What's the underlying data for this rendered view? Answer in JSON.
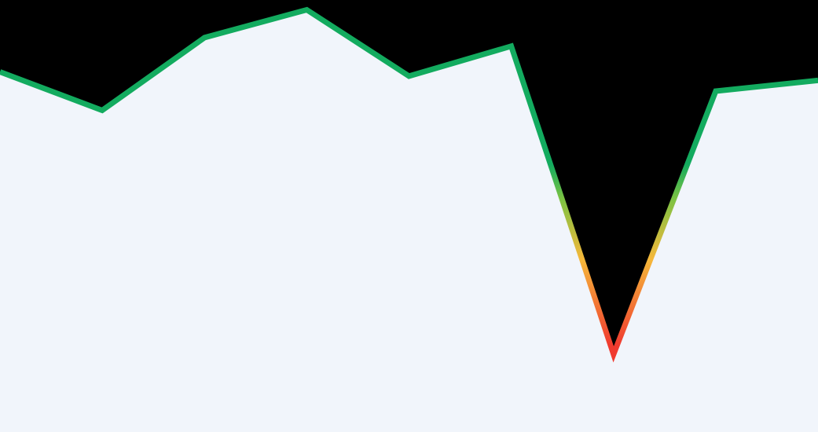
{
  "chart_data": {
    "type": "area",
    "title": "",
    "xlabel": "",
    "ylabel": "",
    "grid": false,
    "legend": "none",
    "ylim": [
      0,
      100
    ],
    "x": [
      0,
      1,
      2,
      3,
      4,
      5,
      6,
      7,
      8
    ],
    "series": [
      {
        "name": "",
        "values": [
          84.5,
          75.5,
          92.5,
          99,
          83.5,
          90.5,
          18.5,
          80,
          82.5
        ]
      }
    ]
  },
  "colors": {
    "background": "#000000",
    "area_fill": "#f1f5fb",
    "line_good": "#13ab5f",
    "line_mid_good": "#7cc243",
    "line_warn": "#f5b83a",
    "line_bad": "#f03a2f"
  }
}
